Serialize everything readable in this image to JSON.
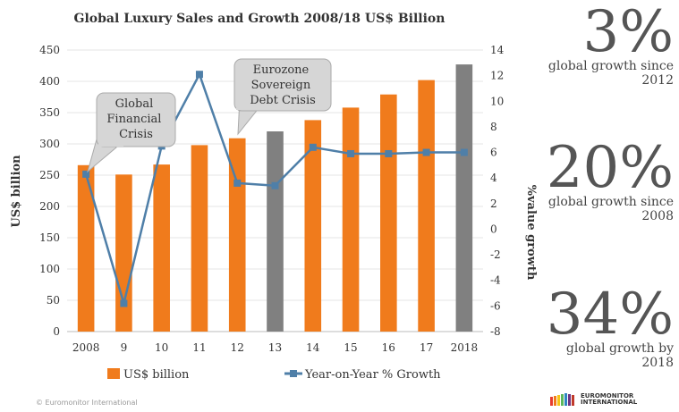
{
  "chart_data": {
    "type": "bar",
    "title": "Global Luxury Sales and Growth 2008/18 US$ Billion",
    "categories": [
      "2008",
      "9",
      "10",
      "11",
      "12",
      "13",
      "14",
      "15",
      "16",
      "17",
      "2018"
    ],
    "series": [
      {
        "name": "US$ billion",
        "type": "bar",
        "axis": "left",
        "values": [
          266,
          251,
          267,
          298,
          309,
          320,
          338,
          358,
          379,
          402,
          427
        ],
        "colors": [
          "#f07b1c",
          "#f07b1c",
          "#f07b1c",
          "#f07b1c",
          "#f07b1c",
          "#808080",
          "#f07b1c",
          "#f07b1c",
          "#f07b1c",
          "#f07b1c",
          "#808080"
        ]
      },
      {
        "name": "Year-on-Year % Growth",
        "type": "line",
        "axis": "right",
        "color": "#4f7fa8",
        "values": [
          4.3,
          -5.8,
          6.5,
          12.1,
          3.6,
          3.4,
          6.4,
          5.9,
          5.9,
          6.0,
          6.0
        ]
      }
    ],
    "ylabel": "US$ billion",
    "y2label": "%value growth",
    "ylim": [
      0,
      450
    ],
    "yticks": [
      "0",
      "50",
      "100",
      "150",
      "200",
      "250",
      "300",
      "350",
      "400",
      "450"
    ],
    "y2lim": [
      -8,
      14
    ],
    "y2ticks": [
      "-8",
      "-6",
      "-4",
      "-2",
      "0",
      "2",
      "4",
      "6",
      "8",
      "10",
      "12",
      "14"
    ],
    "legend_position": "bottom",
    "annotations": [
      {
        "text": [
          "Global",
          "Financial",
          "Crisis"
        ],
        "points_to": "2008"
      },
      {
        "text": [
          "Eurozone",
          "Sovereign",
          "Debt Crisis"
        ],
        "points_to": "12"
      }
    ]
  },
  "side_stats": [
    {
      "number": "3%",
      "caption": "global growth since 2012"
    },
    {
      "number": "20%",
      "caption": "global growth since 2008"
    },
    {
      "number": "34%",
      "caption": "global growth by 2018"
    }
  ],
  "footer": {
    "copyright": "© Euromonitor International",
    "brand": "EUROMONITOR INTERNATIONAL"
  }
}
